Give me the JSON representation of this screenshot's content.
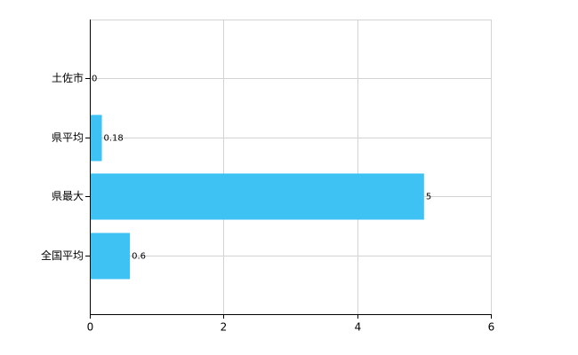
{
  "chart_data": {
    "type": "hbar",
    "categories": [
      "土佐市",
      "県平均",
      "県最大",
      "全国平均"
    ],
    "values": [
      0,
      0.18,
      5,
      0.6
    ],
    "color": "#3ec1f3",
    "xlim": [
      0,
      6
    ],
    "xticks": [
      0,
      2,
      4,
      6
    ],
    "grid": true
  }
}
